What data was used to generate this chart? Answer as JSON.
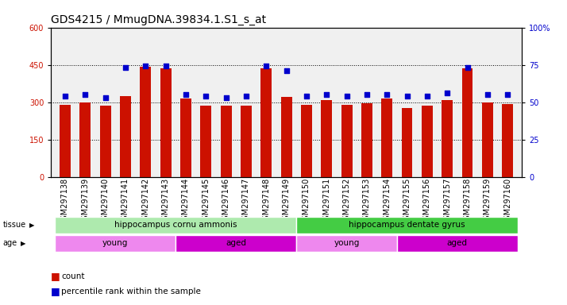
{
  "title": "GDS4215 / MmugDNA.39834.1.S1_s_at",
  "samples": [
    "GSM297138",
    "GSM297139",
    "GSM297140",
    "GSM297141",
    "GSM297142",
    "GSM297143",
    "GSM297144",
    "GSM297145",
    "GSM297146",
    "GSM297147",
    "GSM297148",
    "GSM297149",
    "GSM297150",
    "GSM297151",
    "GSM297152",
    "GSM297153",
    "GSM297154",
    "GSM297155",
    "GSM297156",
    "GSM297157",
    "GSM297158",
    "GSM297159",
    "GSM297160"
  ],
  "counts": [
    290,
    300,
    287,
    325,
    442,
    437,
    315,
    287,
    287,
    287,
    435,
    320,
    290,
    308,
    288,
    295,
    315,
    278,
    285,
    308,
    435,
    298,
    293
  ],
  "percentile_ranks": [
    54,
    55,
    53,
    73,
    74,
    74,
    55,
    54,
    53,
    54,
    74,
    71,
    54,
    55,
    54,
    55,
    55,
    54,
    54,
    56,
    73,
    55,
    55
  ],
  "bar_color": "#cc1100",
  "dot_color": "#0000cc",
  "ylim_left": [
    0,
    600
  ],
  "ylim_right": [
    0,
    100
  ],
  "yticks_left": [
    0,
    150,
    300,
    450,
    600
  ],
  "yticks_right": [
    0,
    25,
    50,
    75,
    100
  ],
  "tissue_groups": [
    {
      "label": "hippocampus cornu ammonis",
      "start": 0,
      "end": 12,
      "color": "#aeeaae"
    },
    {
      "label": "hippocampus dentate gyrus",
      "start": 12,
      "end": 23,
      "color": "#44cc44"
    }
  ],
  "age_groups": [
    {
      "label": "young",
      "start": 0,
      "end": 6,
      "color": "#ee88ee"
    },
    {
      "label": "aged",
      "start": 6,
      "end": 12,
      "color": "#cc00cc"
    },
    {
      "label": "young",
      "start": 12,
      "end": 17,
      "color": "#ee88ee"
    },
    {
      "label": "aged",
      "start": 17,
      "end": 23,
      "color": "#cc00cc"
    }
  ],
  "background_color": "#f0f0f0",
  "title_fontsize": 10,
  "tick_fontsize": 7,
  "label_fontsize": 7.5,
  "dotted_lines": [
    150,
    300,
    450
  ]
}
